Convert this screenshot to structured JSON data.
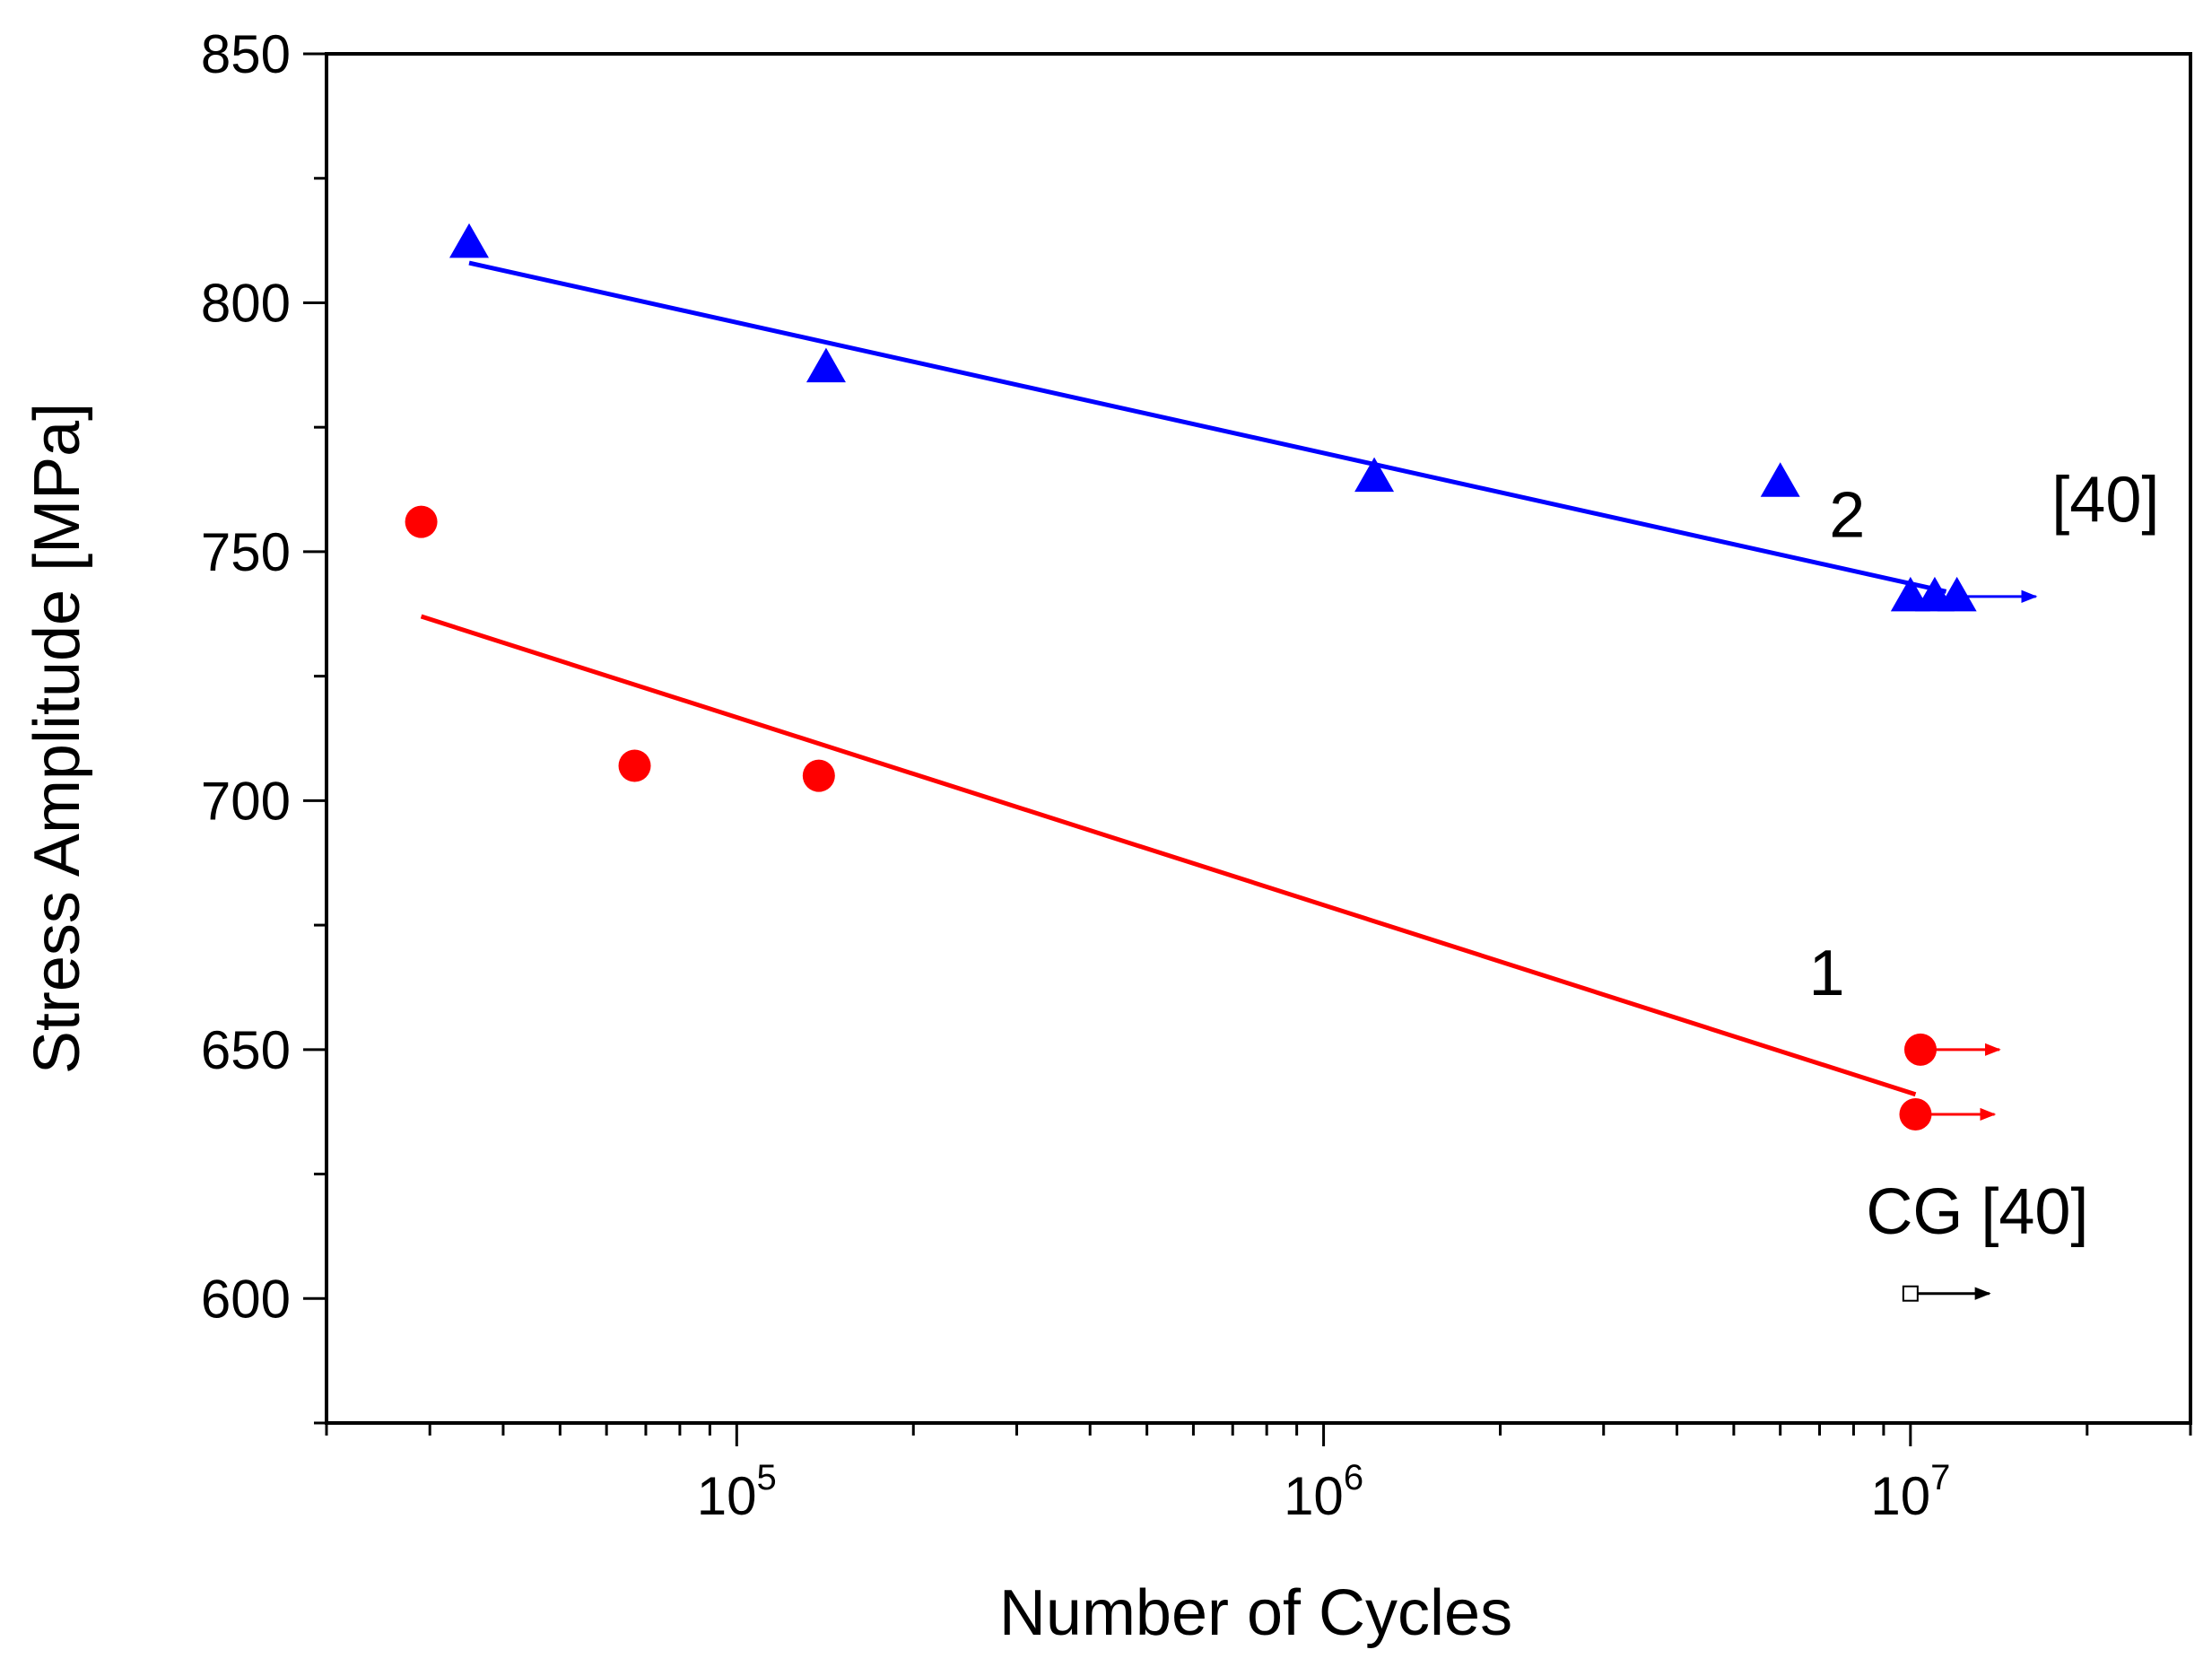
{
  "chart_data": {
    "type": "scatter",
    "title": "",
    "xlabel": "Number of Cycles",
    "ylabel": "Stress Amplitude [MPa]",
    "xscale": "log",
    "xlim": [
      20000,
      30000000
    ],
    "ylim": [
      575,
      850
    ],
    "x_major_ticks": [
      {
        "value": 100000,
        "base": "10",
        "exp": "5"
      },
      {
        "value": 1000000,
        "base": "10",
        "exp": "6"
      },
      {
        "value": 10000000,
        "base": "10",
        "exp": "7"
      }
    ],
    "y_ticks": [
      600,
      650,
      700,
      750,
      800,
      850
    ],
    "series": [
      {
        "name": "1",
        "color": "#ff0000",
        "marker": "circle",
        "points": [
          {
            "x": 29000,
            "y": 756,
            "runout": false
          },
          {
            "x": 67000,
            "y": 707,
            "runout": false
          },
          {
            "x": 138000,
            "y": 705,
            "runout": false
          },
          {
            "x": 10400000,
            "y": 650,
            "runout": true
          },
          {
            "x": 10200000,
            "y": 637,
            "runout": true
          }
        ],
        "fit": [
          {
            "x": 29000,
            "y": 737
          },
          {
            "x": 10200000,
            "y": 641
          }
        ]
      },
      {
        "name": "2",
        "color": "#0000ff",
        "marker": "triangle",
        "points": [
          {
            "x": 35000,
            "y": 812,
            "runout": false
          },
          {
            "x": 142000,
            "y": 787,
            "runout": false
          },
          {
            "x": 1220000,
            "y": 765,
            "runout": false
          },
          {
            "x": 6000000,
            "y": 764,
            "runout": false
          },
          {
            "x": 10000000,
            "y": 741,
            "runout": false
          },
          {
            "x": 11000000,
            "y": 741,
            "runout": false
          },
          {
            "x": 12000000,
            "y": 741,
            "runout": true
          }
        ],
        "fit": [
          {
            "x": 35000,
            "y": 808
          },
          {
            "x": 11500000,
            "y": 742
          }
        ]
      },
      {
        "name": "CG",
        "color": "#000000",
        "marker": "open-square",
        "points": [
          {
            "x": 10000000,
            "y": 601,
            "runout": true
          }
        ]
      }
    ],
    "annotations": [
      {
        "id": "label-1",
        "text": "1",
        "x": 7200000,
        "y": 661
      },
      {
        "id": "label-2",
        "text": "2",
        "x": 7800000,
        "y": 753
      },
      {
        "id": "ref-40-upper",
        "text": "[40]",
        "x": 21500000,
        "y": 756
      },
      {
        "id": "cg-label",
        "text": "CG [40]",
        "x": 13000000,
        "y": 613
      }
    ]
  }
}
